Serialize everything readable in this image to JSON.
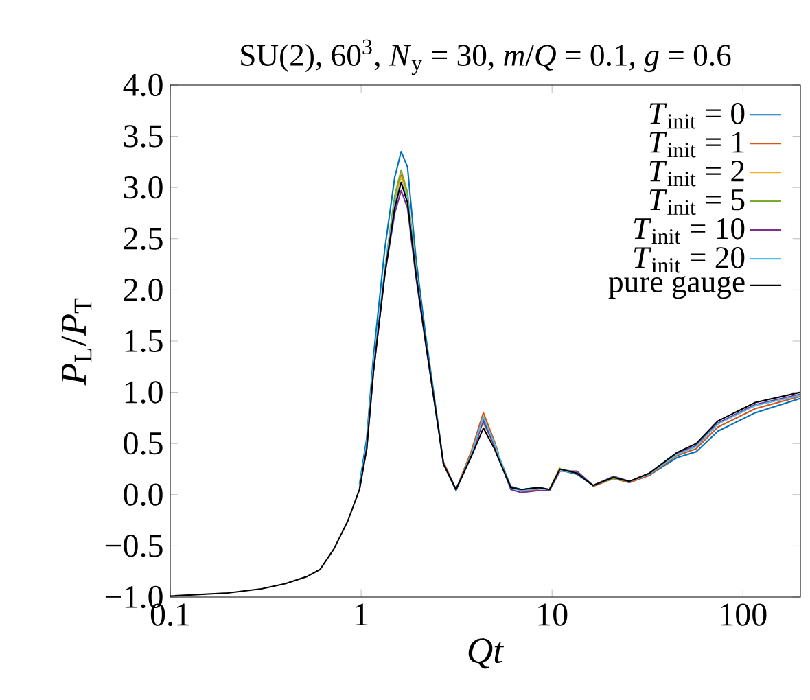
{
  "chart_data": {
    "type": "line",
    "title": "SU(2), 60$^{3}$, *N*$_{y}$ = 30, *m*/*Q* = 0.1, *g* = 0.6",
    "xlabel": "*Qt*",
    "ylabel": "*P*$_{L}$/*P*$_{T}$",
    "log": "x",
    "xlim": [
      0.1,
      200
    ],
    "ylim": [
      -1.0,
      4.0
    ],
    "xticks": [
      0.1,
      1,
      10,
      100
    ],
    "yticks": [
      {
        "value": -1.0,
        "label": "−1.0"
      },
      {
        "value": -0.5,
        "label": "−0.5"
      },
      {
        "value": 0.0,
        "label": "0.0"
      },
      {
        "value": 0.5,
        "label": "0.5"
      },
      {
        "value": 1.0,
        "label": "1.0"
      },
      {
        "value": 1.5,
        "label": "1.5"
      },
      {
        "value": 2.0,
        "label": "2.0"
      },
      {
        "value": 2.5,
        "label": "2.5"
      },
      {
        "value": 3.0,
        "label": "3.0"
      },
      {
        "value": 3.5,
        "label": "3.5"
      },
      {
        "value": 4.0,
        "label": "4.0"
      }
    ],
    "legend": "top right",
    "grid": false,
    "marker": "none",
    "line_style": "solid",
    "x": [
      0.1,
      0.2,
      0.3,
      0.4,
      0.52,
      0.61,
      0.72,
      0.85,
      0.98,
      1.07,
      1.16,
      1.33,
      1.5,
      1.62,
      1.75,
      1.94,
      2.18,
      2.57,
      2.7,
      3.14,
      3.77,
      4.37,
      4.99,
      5.25,
      6.08,
      6.9,
      8.5,
      9.7,
      11,
      13.5,
      16.4,
      21,
      25.4,
      32.4,
      45,
      57,
      74,
      116,
      200
    ],
    "series": [
      {
        "name": "*T*$_{init}$ =   0",
        "color": "#0072bd",
        "values": [
          null,
          null,
          null,
          null,
          null,
          null,
          null,
          null,
          0.1,
          0.55,
          1.35,
          2.4,
          3.1,
          3.35,
          3.2,
          2.3,
          1.55,
          0.6,
          0.3,
          0.04,
          0.4,
          0.75,
          0.5,
          0.38,
          0.08,
          0.05,
          0.07,
          0.05,
          0.24,
          0.2,
          0.09,
          0.16,
          0.12,
          0.19,
          0.36,
          0.42,
          0.62,
          0.8,
          0.94
        ]
      },
      {
        "name": "*T*$_{init}$ =   1",
        "color": "#d95319",
        "values": [
          null,
          null,
          null,
          null,
          null,
          null,
          null,
          null,
          null,
          null,
          null,
          null,
          2.9,
          3.12,
          2.95,
          null,
          null,
          null,
          0.32,
          0.05,
          0.42,
          0.8,
          0.52,
          0.4,
          null,
          0.03,
          0.05,
          null,
          null,
          null,
          0.08,
          0.16,
          0.12,
          0.19,
          0.38,
          0.45,
          0.66,
          0.84,
          0.96
        ]
      },
      {
        "name": "*T*$_{init}$ =   2",
        "color": "#edb120",
        "values": [
          null,
          null,
          null,
          null,
          null,
          null,
          null,
          null,
          null,
          null,
          null,
          null,
          2.9,
          3.1,
          2.92,
          null,
          null,
          null,
          null,
          null,
          null,
          null,
          null,
          null,
          null,
          null,
          null,
          0.05,
          0.27,
          null,
          null,
          null,
          null,
          null,
          null,
          null,
          null,
          null,
          null
        ]
      },
      {
        "name": "*T*$_{init}$ =   5",
        "color": "#77ac30",
        "values": [
          null,
          null,
          null,
          null,
          null,
          null,
          null,
          null,
          null,
          null,
          null,
          2.2,
          2.92,
          3.17,
          2.95,
          2.2,
          null,
          null,
          null,
          null,
          null,
          0.7,
          0.48,
          null,
          null,
          null,
          null,
          null,
          0.25,
          0.22,
          0.09,
          0.16,
          0.13,
          null,
          null,
          0.48,
          0.7,
          null,
          null
        ]
      },
      {
        "name": "*T*$_{init}$ = 10",
        "color": "#7e2f8e",
        "values": [
          null,
          null,
          null,
          null,
          null,
          null,
          null,
          null,
          0.05,
          0.45,
          1.2,
          2.15,
          2.75,
          2.97,
          2.8,
          2.12,
          1.47,
          0.58,
          0.3,
          0.05,
          0.38,
          0.72,
          0.48,
          0.37,
          0.05,
          0.02,
          0.04,
          0.04,
          0.23,
          0.23,
          0.09,
          0.18,
          0.13,
          0.21,
          0.4,
          0.48,
          0.7,
          0.88,
          0.98
        ]
      },
      {
        "name": "*T*$_{init}$ = 20",
        "color": "#4dbeee",
        "values": [
          null,
          null,
          null,
          null,
          null,
          null,
          null,
          null,
          0.07,
          0.5,
          1.27,
          2.2,
          2.85,
          3.05,
          2.9,
          2.17,
          1.49,
          0.59,
          0.3,
          0.05,
          0.39,
          0.76,
          0.5,
          0.38,
          0.06,
          0.04,
          0.06,
          0.05,
          0.24,
          0.21,
          0.09,
          0.17,
          0.13,
          0.2,
          0.39,
          0.47,
          0.69,
          0.87,
          0.97
        ]
      },
      {
        "name": "pure gauge",
        "color": "#000000",
        "values": [
          -0.99,
          -0.96,
          -0.92,
          -0.87,
          -0.8,
          -0.73,
          -0.53,
          -0.26,
          0.05,
          0.45,
          1.2,
          2.15,
          2.8,
          3.05,
          2.85,
          2.15,
          1.48,
          0.58,
          0.3,
          0.05,
          0.37,
          0.65,
          0.45,
          0.35,
          0.07,
          0.05,
          0.07,
          0.05,
          0.25,
          0.21,
          0.09,
          0.17,
          0.13,
          0.21,
          0.41,
          0.5,
          0.72,
          0.9,
          1.0
        ]
      }
    ]
  }
}
